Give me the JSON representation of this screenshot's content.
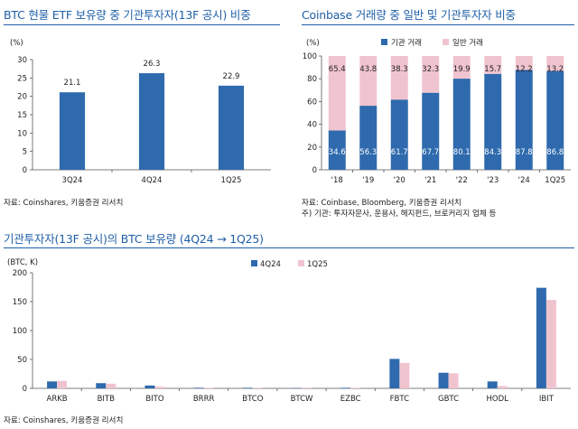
{
  "panel1": {
    "title": "BTC 현물 ETF 보유량 중 기관투자자(13F 공시) 비중",
    "source": "자료: Coinshares, 키움증권 리서치",
    "color": "#2e6aad",
    "chart_data": {
      "type": "bar",
      "title": "BTC 현물 ETF 보유량 중 기관투자자(13F 공시) 비중",
      "unit": "(%)",
      "categories": [
        "3Q24",
        "4Q24",
        "1Q25"
      ],
      "values": [
        21.1,
        26.3,
        22.9
      ],
      "value_labels": [
        "21.1",
        "26.3",
        "22.9"
      ],
      "ylim": [
        0,
        30
      ],
      "yticks": [
        0,
        5,
        10,
        15,
        20,
        25,
        30
      ],
      "grid": false
    }
  },
  "panel2": {
    "title": "Coinbase 거래량 중 일반 및 기관투자자 비중",
    "source": "자료: Coinbase, Bloomberg, 키움증권 리서치",
    "note": "주) 기관: 투자자문사, 운용사, 헤지펀드, 브로커리지 업체 등",
    "chart_data": {
      "type": "bar",
      "stacked": true,
      "title": "Coinbase 거래량 중 일반 및 기관투자자 비중",
      "unit": "(%)",
      "categories": [
        "'18",
        "'19",
        "'20",
        "'21",
        "'22",
        "'23",
        "'24",
        "1Q25"
      ],
      "series": [
        {
          "name": "기관 거래",
          "color": "#2e6aad",
          "values": [
            34.6,
            56.3,
            61.7,
            67.7,
            80.1,
            84.3,
            87.8,
            86.8
          ],
          "labels": [
            "34.6",
            "56.3",
            "61.7",
            "67.7",
            "80.1",
            "84.3",
            "87.8",
            "86.8"
          ]
        },
        {
          "name": "일반 거래",
          "color": "#f0c4cf",
          "values": [
            65.4,
            43.8,
            38.3,
            32.3,
            19.9,
            15.7,
            12.2,
            13.2
          ],
          "labels": [
            "65.4",
            "43.8",
            "38.3",
            "32.3",
            "19.9",
            "15.7",
            "12.2",
            "13.2"
          ]
        }
      ],
      "ylim": [
        0,
        100
      ],
      "yticks": [
        0,
        20,
        40,
        60,
        80,
        100
      ],
      "legend": "top",
      "grid": false
    }
  },
  "panel3": {
    "title": "기관투자자(13F 공시)의 BTC 보유량 (4Q24 → 1Q25)",
    "source": "자료: Coinshares, 키움증권 리서치",
    "chart_data": {
      "type": "bar",
      "title": "기관투자자(13F 공시)의 BTC 보유량 (4Q24 → 1Q25)",
      "unit": "(BTC, K)",
      "categories": [
        "ARKB",
        "BITB",
        "BITO",
        "BRRR",
        "BTCO",
        "BTCW",
        "EZBC",
        "FBTC",
        "GBTC",
        "HODL",
        "IBIT"
      ],
      "series": [
        {
          "name": "4Q24",
          "color": "#2e6aad",
          "values": [
            12,
            9,
            5,
            1,
            1,
            0.5,
            1,
            51,
            27,
            12,
            174
          ]
        },
        {
          "name": "1Q25",
          "color": "#f0c4cf",
          "values": [
            13,
            8,
            3,
            1,
            1,
            0.5,
            1,
            44,
            26,
            4,
            153
          ]
        }
      ],
      "ylim": [
        0,
        200
      ],
      "yticks": [
        0,
        50,
        100,
        150,
        200
      ],
      "legend": "top",
      "grid": false
    }
  }
}
